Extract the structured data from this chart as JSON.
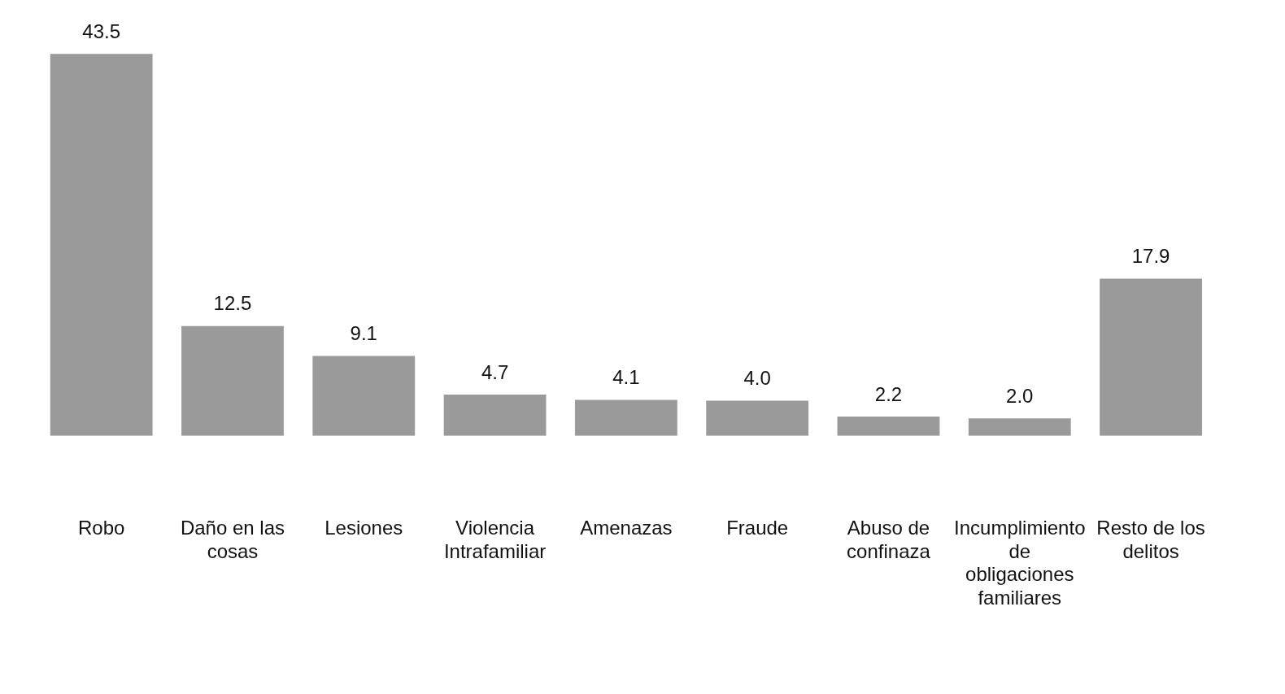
{
  "chart_data": {
    "type": "bar",
    "categories": [
      "Robo",
      "Daño en las cosas",
      "Lesiones",
      "Violencia Intrafamiliar",
      "Amenazas",
      "Fraude",
      "Abuso de confinaza",
      "Incumplimiento de obligaciones familiares",
      "Resto de los delitos"
    ],
    "values": [
      43.5,
      12.5,
      9.1,
      4.7,
      4.1,
      4.0,
      2.2,
      2.0,
      17.9
    ],
    "value_labels": [
      "43.5",
      "12.5",
      "9.1",
      "4.7",
      "4.1",
      "4.0",
      "2.2",
      "2.0",
      "17.9"
    ],
    "color": "#9a9a9a",
    "grid": false,
    "legend": false
  }
}
